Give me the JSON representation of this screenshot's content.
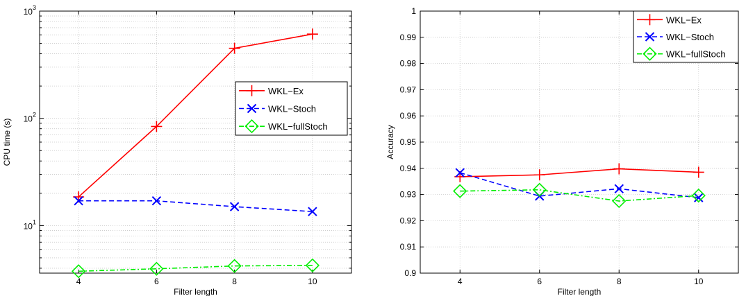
{
  "chart_data": [
    {
      "type": "line",
      "xlabel": "Filter length",
      "ylabel": "CPU time (s)",
      "yscale": "log",
      "xlim": [
        3,
        11
      ],
      "ylim": [
        3.6,
        1000
      ],
      "xticks": [
        4,
        6,
        8,
        10
      ],
      "xtick_labels": [
        "4",
        "6",
        "8",
        "10"
      ],
      "yticks": [
        10,
        100,
        1000
      ],
      "ytick_labels": [
        {
          "base": "10",
          "exp": "1"
        },
        {
          "base": "10",
          "exp": "2"
        },
        {
          "base": "10",
          "exp": "3"
        }
      ],
      "grid": true,
      "legend_position": "center-right",
      "x": [
        4,
        6,
        8,
        10
      ],
      "series": [
        {
          "name": "WKL−Ex",
          "values": [
            18.5,
            84,
            450,
            610
          ],
          "color": "#ff0000",
          "dash": "solid",
          "marker": "plus"
        },
        {
          "name": "WKL−Stoch",
          "values": [
            17,
            17,
            15,
            13.5
          ],
          "color": "#0000ff",
          "dash": "dashed",
          "marker": "x"
        },
        {
          "name": "WKL−fullStoch",
          "values": [
            3.75,
            3.95,
            4.2,
            4.25
          ],
          "color": "#00ee00",
          "dash": "dashdot",
          "marker": "diamond"
        }
      ]
    },
    {
      "type": "line",
      "xlabel": "Filter length",
      "ylabel": "Accuracy",
      "yscale": "linear",
      "xlim": [
        3,
        11
      ],
      "ylim": [
        0.9,
        1
      ],
      "xticks": [
        4,
        6,
        8,
        10
      ],
      "xtick_labels": [
        "4",
        "6",
        "8",
        "10"
      ],
      "yticks": [
        0.9,
        0.91,
        0.92,
        0.93,
        0.94,
        0.95,
        0.96,
        0.97,
        0.98,
        0.99,
        1
      ],
      "ytick_labels": [
        "0.9",
        "0.91",
        "0.92",
        "0.93",
        "0.94",
        "0.95",
        "0.96",
        "0.97",
        "0.98",
        "0.99",
        "1"
      ],
      "grid": true,
      "legend_position": "top-right",
      "x": [
        4,
        6,
        8,
        10
      ],
      "series": [
        {
          "name": "WKL−Ex",
          "values": [
            0.9368,
            0.9375,
            0.9398,
            0.9385
          ],
          "color": "#ff0000",
          "dash": "solid",
          "marker": "plus"
        },
        {
          "name": "WKL−Stoch",
          "values": [
            0.9383,
            0.9294,
            0.9322,
            0.9288
          ],
          "color": "#0000ff",
          "dash": "dashed",
          "marker": "x"
        },
        {
          "name": "WKL−fullStoch",
          "values": [
            0.9313,
            0.9318,
            0.9275,
            0.9296
          ],
          "color": "#00ee00",
          "dash": "dashdot",
          "marker": "diamond"
        }
      ]
    }
  ]
}
